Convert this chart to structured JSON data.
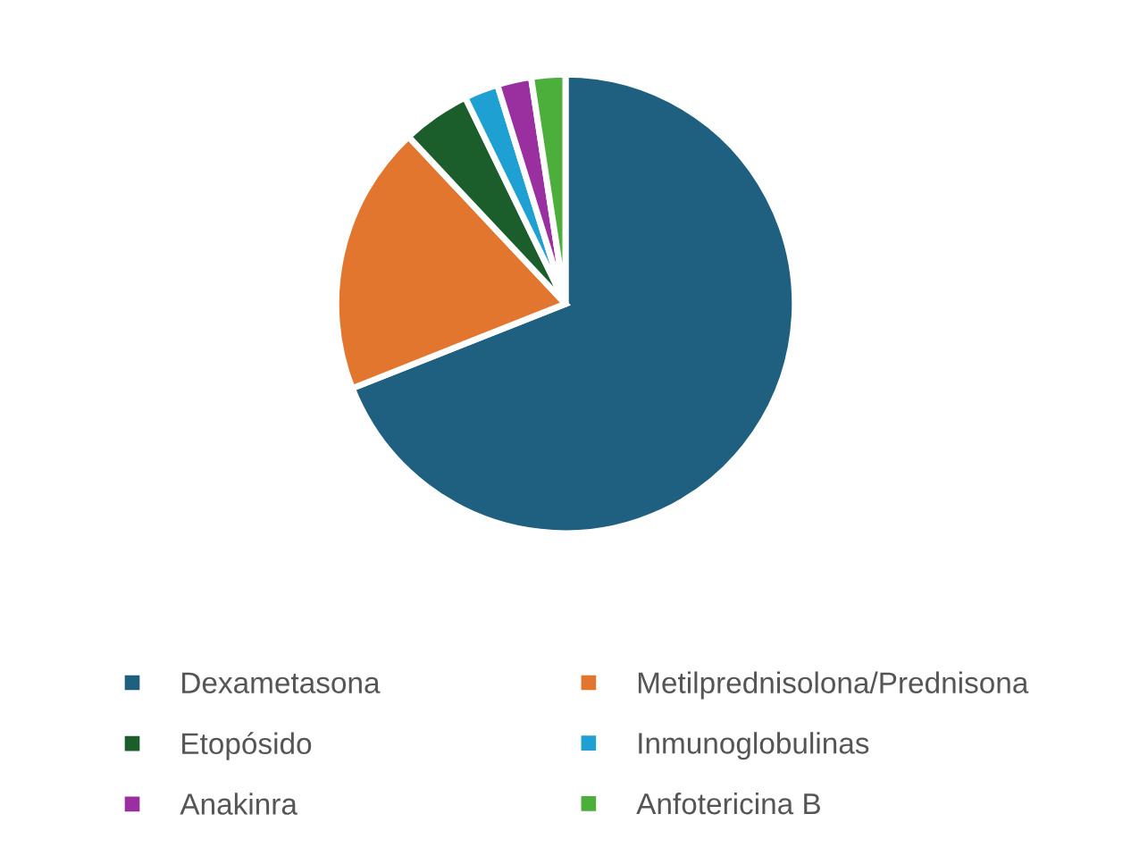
{
  "chart_data": {
    "type": "pie",
    "categories": [
      "Dexametasona",
      "Metilprednisolona/Prednisona",
      "Etopósido",
      "Inmunoglobulinas",
      "Anakinra",
      "Anfotericina B"
    ],
    "values": [
      69,
      19,
      4.8,
      2.4,
      2.4,
      2.4
    ],
    "colors": [
      "#1f5f80",
      "#e2762f",
      "#1b5e2c",
      "#1fa0d2",
      "#9a2f9f",
      "#4caf3c"
    ],
    "legend": "bottom"
  }
}
